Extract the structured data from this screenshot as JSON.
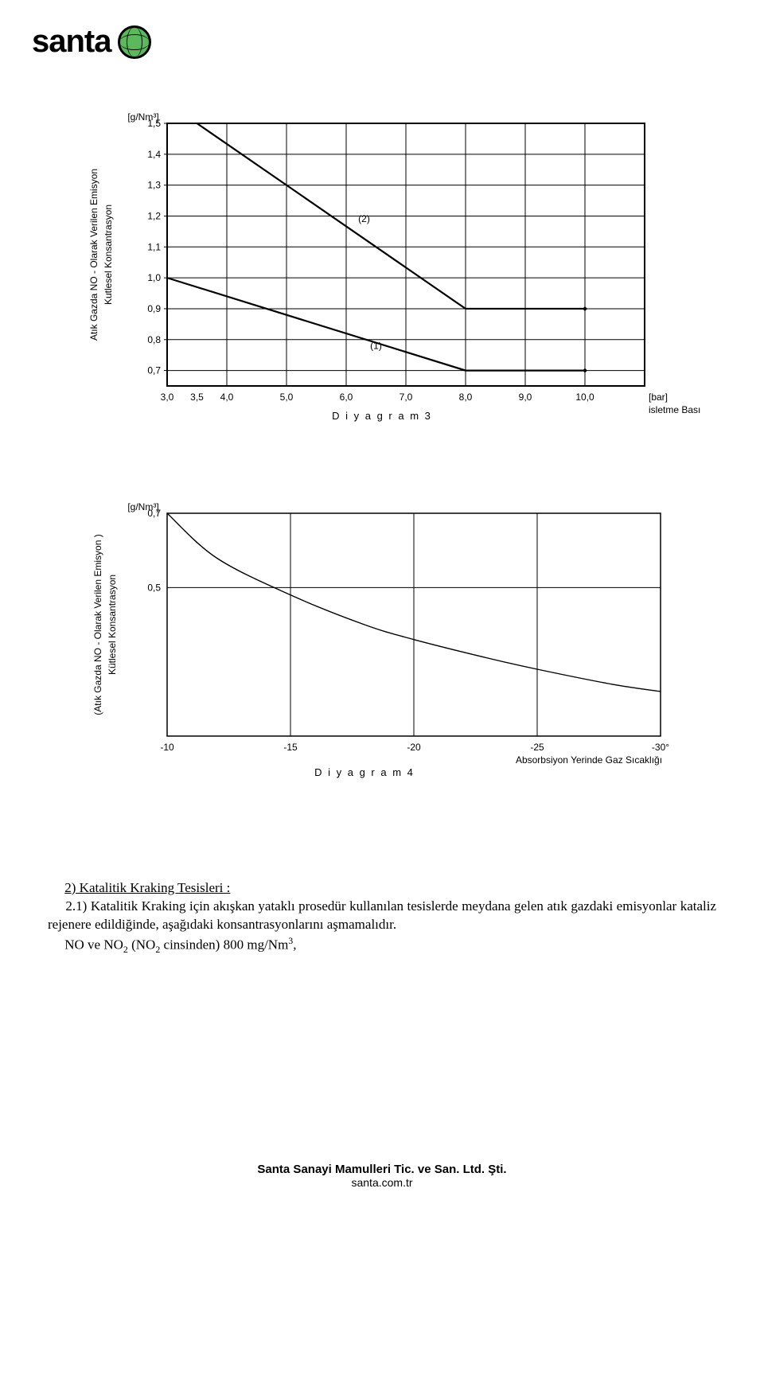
{
  "logo": {
    "text": "santa"
  },
  "chart3": {
    "unit_label": "[g/Nm³]",
    "y_ticks": [
      "1,5",
      "1,4",
      "1,3",
      "1,2",
      "1,1",
      "1,0",
      "0,9",
      "0,8",
      "0,7"
    ],
    "y_values": [
      1.5,
      1.4,
      1.3,
      1.2,
      1.1,
      1.0,
      0.9,
      0.8,
      0.7
    ],
    "x_ticks": [
      "3,0",
      "3,5",
      "4,0",
      "5,0",
      "6,0",
      "7,0",
      "8,0",
      "9,0",
      "10,0"
    ],
    "x_values": [
      3.0,
      3.5,
      4.0,
      5.0,
      6.0,
      7.0,
      8.0,
      9.0,
      10.0
    ],
    "x_unit": "[bar]",
    "x_label": "isletme  Basıncı",
    "y_label_outer": "Atık  Gazda  NO - Olarak  Verilen   Emisyon",
    "y_label_inner": "Kutlesel   Konsantrasyon",
    "caption": "D i y a g r a m  3",
    "series1_label": "(1)",
    "series2_label": "(2)",
    "series1": [
      [
        3.0,
        1.0
      ],
      [
        8.0,
        0.7
      ],
      [
        10.0,
        0.7
      ]
    ],
    "series2": [
      [
        3.5,
        1.5
      ],
      [
        5.0,
        1.3
      ],
      [
        8.0,
        0.9
      ],
      [
        10.0,
        0.9
      ]
    ],
    "xlim": [
      3.0,
      11.0
    ],
    "ylim": [
      0.65,
      1.5
    ],
    "line_color": "#000000",
    "line_width": 2.2,
    "grid_color": "#000000",
    "grid_width": 1
  },
  "chart4": {
    "unit_label": "[g/Nm³]",
    "y_ticks": [
      "0,7",
      "0,5"
    ],
    "y_values": [
      0.7,
      0.5
    ],
    "x_ticks": [
      "-10",
      "-15",
      "-20",
      "-25",
      "-30°"
    ],
    "x_values": [
      -10,
      -15,
      -20,
      -25,
      -30
    ],
    "x_label": "Absorbsiyon   Yerinde   Gaz   Sıcaklığı",
    "y_label_outer": "(Atık  Gazda   NO - Olarak  Verilen   Emisyon )",
    "y_label_inner": "Kütlesel   Konsantrasyon",
    "caption": "D i y a g r a m   4",
    "series": [
      [
        -10,
        0.7
      ],
      [
        -12,
        0.58
      ],
      [
        -15,
        0.48
      ],
      [
        -18,
        0.4
      ],
      [
        -20,
        0.36
      ],
      [
        -23,
        0.31
      ],
      [
        -25,
        0.28
      ],
      [
        -28,
        0.24
      ],
      [
        -30,
        0.22
      ]
    ],
    "xlim": [
      -10,
      -30
    ],
    "ylim": [
      0.1,
      0.7
    ],
    "line_color": "#000000",
    "line_width": 1.4,
    "grid_x": [
      -15,
      -20,
      -25
    ],
    "grid_y": [
      0.5
    ],
    "grid_color": "#000000",
    "grid_width": 1
  },
  "body": {
    "heading": "2) Katalitik Kraking Tesisleri :",
    "indent": "    ",
    "p1_a": "2.1) Katalitik Kraking için akışkan yataklı prosedür kullanılan tesislerde meydana gelen atık gazdaki emisyonlar kataliz rejenere edildiğinde, aşağıdaki konsantrasyonlarını aşmamalıdır.",
    "p1_b": "NO ve NO",
    "p1_c": " (NO",
    "p1_d": " cinsinden) 800 mg/Nm",
    "p1_e": ","
  },
  "footer": {
    "line1": "Santa Sanayi Mamulleri Tic. ve San. Ltd. Şti.",
    "line2": "santa.com.tr"
  }
}
